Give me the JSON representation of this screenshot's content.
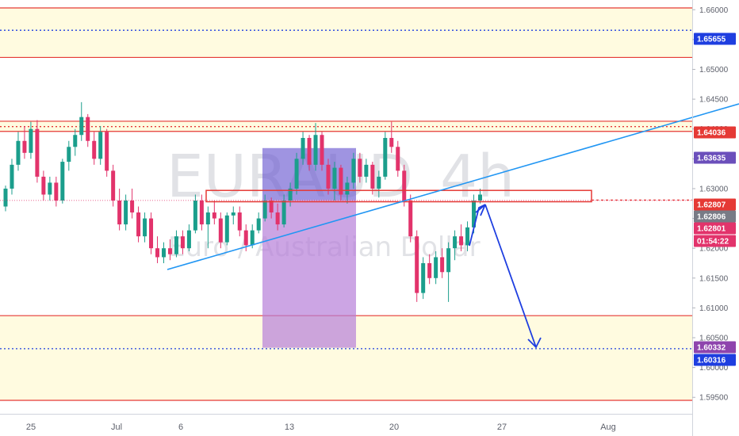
{
  "watermark": {
    "symbol": "EURAUD",
    "interval": "4h",
    "description": "Euro / Australian Dollar"
  },
  "colors": {
    "background": "#ffffff",
    "zone_fill": "#fffbe0",
    "zone_line": "#e53935",
    "dotted_line": "#1e3ee0",
    "trend_line": "#2196f3",
    "arrow": "#1e3ee0",
    "up_candle": "#1b9e8c",
    "down_candle": "#e2336b",
    "projection_top": "#6b5bd1",
    "projection_bottom": "#b67fd8",
    "highlight_box": "#e53935"
  },
  "chart_data": {
    "type": "candlestick",
    "symbol": "EURAUD",
    "interval": "4h",
    "ylim": [
      1.592,
      1.6635
    ],
    "y_ticks": [
      "1.66000",
      "1.65500",
      "1.65000",
      "1.64500",
      "1.64000",
      "1.63500",
      "1.63000",
      "1.62500",
      "1.62000",
      "1.61500",
      "1.61000",
      "1.60500",
      "1.60000",
      "1.59500"
    ],
    "x_ticks": [
      {
        "label": "25",
        "bar": 4
      },
      {
        "label": "Jul",
        "bar": 17
      },
      {
        "label": "6",
        "bar": 27
      },
      {
        "label": "13",
        "bar": 42
      },
      {
        "label": "20",
        "bar": 57
      },
      {
        "label": "27",
        "bar": 72
      },
      {
        "label": "Aug",
        "bar": 87
      }
    ],
    "candles": [
      [
        1.627,
        1.6305,
        1.6262,
        1.63
      ],
      [
        1.63,
        1.635,
        1.629,
        1.634
      ],
      [
        1.634,
        1.6395,
        1.633,
        1.638
      ],
      [
        1.638,
        1.6405,
        1.635,
        1.636
      ],
      [
        1.636,
        1.6412,
        1.635,
        1.64
      ],
      [
        1.64,
        1.6415,
        1.631,
        1.632
      ],
      [
        1.632,
        1.633,
        1.628,
        1.629
      ],
      [
        1.629,
        1.632,
        1.628,
        1.631
      ],
      [
        1.631,
        1.632,
        1.627,
        1.628
      ],
      [
        1.628,
        1.635,
        1.6275,
        1.6345
      ],
      [
        1.6345,
        1.638,
        1.633,
        1.637
      ],
      [
        1.637,
        1.64,
        1.6355,
        1.639
      ],
      [
        1.639,
        1.6445,
        1.638,
        1.642
      ],
      [
        1.642,
        1.6425,
        1.637,
        1.638
      ],
      [
        1.638,
        1.6395,
        1.634,
        1.635
      ],
      [
        1.635,
        1.6405,
        1.634,
        1.6395
      ],
      [
        1.6395,
        1.64,
        1.632,
        1.633
      ],
      [
        1.633,
        1.634,
        1.627,
        1.628
      ],
      [
        1.628,
        1.63,
        1.623,
        1.624
      ],
      [
        1.624,
        1.629,
        1.623,
        1.628
      ],
      [
        1.628,
        1.63,
        1.625,
        1.626
      ],
      [
        1.626,
        1.627,
        1.621,
        1.622
      ],
      [
        1.622,
        1.626,
        1.621,
        1.625
      ],
      [
        1.625,
        1.626,
        1.619,
        1.62
      ],
      [
        1.62,
        1.622,
        1.6175,
        1.6185
      ],
      [
        1.6185,
        1.621,
        1.6175,
        1.62
      ],
      [
        1.62,
        1.6215,
        1.618,
        1.619
      ],
      [
        1.619,
        1.623,
        1.6185,
        1.622
      ],
      [
        1.622,
        1.623,
        1.619,
        1.62
      ],
      [
        1.62,
        1.624,
        1.6195,
        1.623
      ],
      [
        1.623,
        1.629,
        1.6225,
        1.628
      ],
      [
        1.628,
        1.629,
        1.623,
        1.624
      ],
      [
        1.624,
        1.627,
        1.62,
        1.626
      ],
      [
        1.626,
        1.628,
        1.624,
        1.625
      ],
      [
        1.625,
        1.626,
        1.62,
        1.621
      ],
      [
        1.621,
        1.626,
        1.6205,
        1.6255
      ],
      [
        1.6255,
        1.627,
        1.624,
        1.626
      ],
      [
        1.626,
        1.627,
        1.622,
        1.623
      ],
      [
        1.623,
        1.624,
        1.6195,
        1.6205
      ],
      [
        1.6205,
        1.624,
        1.62,
        1.623
      ],
      [
        1.623,
        1.626,
        1.6225,
        1.625
      ],
      [
        1.625,
        1.629,
        1.6245,
        1.628
      ],
      [
        1.628,
        1.6285,
        1.625,
        1.626
      ],
      [
        1.626,
        1.6275,
        1.623,
        1.624
      ],
      [
        1.624,
        1.629,
        1.6235,
        1.628
      ],
      [
        1.628,
        1.631,
        1.627,
        1.63
      ],
      [
        1.63,
        1.636,
        1.629,
        1.635
      ],
      [
        1.635,
        1.6395,
        1.634,
        1.6385
      ],
      [
        1.6385,
        1.639,
        1.633,
        1.634
      ],
      [
        1.634,
        1.641,
        1.633,
        1.639
      ],
      [
        1.639,
        1.6395,
        1.633,
        1.634
      ],
      [
        1.634,
        1.635,
        1.629,
        1.63
      ],
      [
        1.63,
        1.6345,
        1.628,
        1.6335
      ],
      [
        1.6335,
        1.634,
        1.628,
        1.629
      ],
      [
        1.629,
        1.632,
        1.6275,
        1.631
      ],
      [
        1.631,
        1.636,
        1.63,
        1.635
      ],
      [
        1.635,
        1.636,
        1.631,
        1.632
      ],
      [
        1.632,
        1.635,
        1.631,
        1.634
      ],
      [
        1.634,
        1.6345,
        1.629,
        1.63
      ],
      [
        1.63,
        1.633,
        1.6285,
        1.632
      ],
      [
        1.632,
        1.6395,
        1.6315,
        1.6385
      ],
      [
        1.6385,
        1.6412,
        1.636,
        1.637
      ],
      [
        1.637,
        1.638,
        1.632,
        1.633
      ],
      [
        1.633,
        1.634,
        1.627,
        1.628
      ],
      [
        1.628,
        1.629,
        1.621,
        1.622
      ],
      [
        1.622,
        1.623,
        1.611,
        1.6125
      ],
      [
        1.6125,
        1.6185,
        1.6115,
        1.6175
      ],
      [
        1.6175,
        1.619,
        1.614,
        1.615
      ],
      [
        1.615,
        1.6195,
        1.614,
        1.6185
      ],
      [
        1.6185,
        1.62,
        1.615,
        1.616
      ],
      [
        1.616,
        1.621,
        1.611,
        1.62
      ],
      [
        1.62,
        1.623,
        1.618,
        1.622
      ],
      [
        1.622,
        1.624,
        1.6195,
        1.6205
      ],
      [
        1.6205,
        1.6245,
        1.6195,
        1.6235
      ],
      [
        1.6235,
        1.629,
        1.6225,
        1.628
      ],
      [
        1.628,
        1.63,
        1.6275,
        1.629
      ]
    ],
    "horizontal_zones": [
      {
        "top": 1.6603,
        "bottom": 1.652,
        "midline": 1.65655
      },
      {
        "top": 1.6413,
        "bottom": 1.6396,
        "midline": 1.6404
      },
      {
        "top": 1.6087,
        "bottom": 1.5945,
        "midline": 1.60316
      }
    ],
    "trend_lines": [
      {
        "from": {
          "bar": 16,
          "price": 1.6168
        },
        "to": {
          "bar": 102,
          "price": 1.6455
        }
      }
    ],
    "highlight_box": {
      "bar_from": 19.5,
      "bar_to": 55.5,
      "top": 1.6297,
      "bottom": 1.6278
    },
    "projection": {
      "bar_from": 40.5,
      "bar_to": 51,
      "top": 1.6368,
      "entry": 1.62807,
      "target": 1.60332,
      "bottom": 1.6033
    },
    "path_arrows": [
      {
        "points": [
          [
            44,
            1.62
          ],
          [
            45.8,
            1.629
          ],
          [
            47.5,
            1.6295
          ]
        ]
      },
      {
        "points": [
          [
            45.8,
            1.629
          ],
          [
            50.5,
            1.6033
          ]
        ]
      }
    ],
    "price_labels": [
      {
        "text": "1.65655",
        "price": 1.65655,
        "color": "#1e3ee0"
      },
      {
        "text": "1.64036",
        "price": 1.64036,
        "color": "#e53935"
      },
      {
        "text": "1.63635",
        "price": 1.63635,
        "color": "#6b4fbb"
      },
      {
        "text": "1.62807",
        "price": 1.62807,
        "color": "#e53935"
      },
      {
        "text": "1.62806",
        "price": 1.62806,
        "color": "#787b86"
      },
      {
        "text": "1.62801",
        "price": 1.62801,
        "color": "#e2336b"
      },
      {
        "text": "01:54:22",
        "price": 1.62648,
        "color": "#e2336b"
      },
      {
        "text": "1.60332",
        "price": 1.60332,
        "color": "#8e44ad"
      },
      {
        "text": "1.60316",
        "price": 1.60316,
        "color": "#1e3ee0"
      }
    ]
  }
}
